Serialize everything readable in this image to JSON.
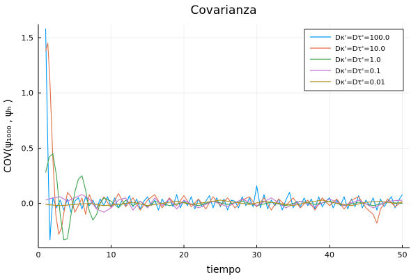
{
  "chart_data": {
    "type": "line",
    "title": "Covarianza",
    "xlabel": "tiempo",
    "ylabel": "COV(ψ₁₀₀₀ , ψₕ )",
    "xlim": [
      0,
      51
    ],
    "ylim": [
      -0.4,
      1.62
    ],
    "xticks": [
      0,
      10,
      20,
      30,
      40,
      50
    ],
    "yticks": [
      0.0,
      0.5,
      1.0,
      1.5
    ],
    "ytick_labels": [
      "0.0",
      "0.5",
      "1.0",
      "1.5"
    ],
    "grid": true,
    "legend_position": "top-right",
    "series": [
      {
        "name": "Dκ'=Dτ'=100.0",
        "color": "#009AFA",
        "x": [
          1.0,
          1.2,
          1.4,
          1.6,
          1.8,
          2.0,
          2.5,
          3.0,
          3.5,
          4.0,
          4.5,
          5.0,
          5.5,
          6.0,
          6.5,
          7.0,
          7.5,
          8.0,
          8.5,
          9.0,
          9.5,
          10.0,
          10.5,
          11.0,
          11.5,
          12.0,
          12.5,
          13.0,
          13.5,
          14.0,
          14.5,
          15.0,
          15.5,
          16.0,
          16.5,
          17.0,
          17.5,
          18.0,
          18.5,
          19.0,
          19.5,
          20.0,
          20.5,
          21.0,
          21.5,
          22.0,
          22.5,
          23.0,
          23.5,
          24.0,
          24.5,
          25.0,
          25.5,
          26.0,
          26.5,
          27.0,
          27.5,
          28.0,
          28.5,
          29.0,
          29.5,
          30.0,
          30.5,
          31.0,
          31.5,
          32.0,
          32.5,
          33.0,
          33.5,
          34.0,
          34.5,
          35.0,
          35.5,
          36.0,
          36.5,
          37.0,
          37.5,
          38.0,
          38.5,
          39.0,
          39.5,
          40.0,
          40.5,
          41.0,
          41.5,
          42.0,
          42.5,
          43.0,
          43.5,
          44.0,
          44.5,
          45.0,
          45.5,
          46.0,
          46.5,
          47.0,
          47.5,
          48.0,
          48.5,
          49.0,
          49.5,
          50.0
        ],
        "y": [
          1.58,
          0.9,
          0.2,
          -0.33,
          -0.12,
          0.05,
          -0.04,
          0.03,
          -0.06,
          0.04,
          -0.08,
          0.02,
          0.05,
          -0.05,
          0.06,
          -0.02,
          0.03,
          -0.05,
          0.04,
          -0.02,
          0.06,
          -0.03,
          0.05,
          -0.04,
          0.03,
          -0.02,
          0.07,
          -0.03,
          0.04,
          -0.05,
          0.02,
          0.06,
          -0.02,
          0.03,
          -0.06,
          0.04,
          -0.02,
          0.05,
          -0.03,
          0.08,
          -0.04,
          0.03,
          -0.02,
          0.06,
          -0.05,
          0.04,
          -0.03,
          0.02,
          0.07,
          -0.04,
          0.05,
          -0.03,
          0.04,
          -0.06,
          0.03,
          0.02,
          -0.04,
          0.06,
          -0.02,
          0.05,
          -0.03,
          0.16,
          -0.04,
          0.08,
          -0.05,
          0.03,
          -0.02,
          0.04,
          -0.06,
          0.03,
          0.1,
          -0.04,
          0.02,
          -0.03,
          0.05,
          -0.02,
          0.04,
          -0.05,
          0.06,
          -0.03,
          0.02,
          0.05,
          -0.04,
          0.03,
          -0.02,
          0.06,
          -0.05,
          0.04,
          -0.03,
          0.07,
          -0.04,
          0.03,
          -0.02,
          0.05,
          -0.06,
          0.04,
          -0.03,
          0.02,
          0.06,
          -0.04,
          0.03,
          0.08
        ]
      },
      {
        "name": "Dκ'=Dτ'=10.0",
        "color": "#E26F46",
        "x": [
          1.0,
          1.3,
          1.6,
          2.0,
          2.4,
          2.8,
          3.2,
          3.6,
          4.0,
          4.5,
          5.0,
          5.5,
          6.0,
          6.5,
          7.0,
          7.5,
          8.0,
          9.0,
          10.0,
          11.0,
          12.0,
          13.0,
          14.0,
          15.0,
          16.0,
          17.0,
          18.0,
          19.0,
          20.0,
          21.0,
          22.0,
          23.0,
          24.0,
          25.0,
          26.0,
          27.0,
          28.0,
          29.0,
          30.0,
          31.0,
          32.0,
          33.0,
          34.0,
          35.0,
          36.0,
          37.0,
          38.0,
          39.0,
          40.0,
          41.0,
          42.0,
          43.0,
          44.0,
          45.0,
          46.0,
          46.5,
          47.0,
          48.0,
          49.0,
          50.0
        ],
        "y": [
          1.38,
          1.45,
          1.1,
          0.4,
          -0.1,
          -0.28,
          -0.22,
          -0.05,
          0.1,
          0.06,
          -0.08,
          -0.02,
          0.05,
          -0.1,
          0.08,
          0.0,
          -0.05,
          0.06,
          -0.04,
          0.09,
          -0.03,
          0.05,
          -0.06,
          0.03,
          0.08,
          -0.04,
          0.05,
          -0.02,
          0.07,
          -0.03,
          0.04,
          -0.05,
          0.06,
          -0.02,
          0.05,
          -0.04,
          0.03,
          0.06,
          -0.03,
          0.05,
          -0.06,
          0.04,
          -0.02,
          0.05,
          -0.04,
          0.03,
          -0.06,
          0.05,
          -0.02,
          0.04,
          -0.05,
          0.03,
          0.06,
          -0.04,
          -0.1,
          -0.18,
          -0.05,
          0.04,
          -0.03,
          0.02
        ]
      },
      {
        "name": "Dκ'=Dτ'=1.0",
        "color": "#3DA44D",
        "x": [
          1.0,
          1.5,
          2.0,
          2.5,
          3.0,
          3.5,
          4.0,
          4.5,
          5.0,
          5.5,
          6.0,
          6.5,
          7.0,
          7.5,
          8.0,
          8.5,
          9.0,
          10.0,
          11.0,
          12.0,
          13.0,
          14.0,
          15.0,
          16.0,
          18.0,
          20.0,
          22.0,
          24.0,
          26.0,
          28.0,
          30.0,
          32.0,
          34.0,
          36.0,
          38.0,
          40.0,
          42.0,
          44.0,
          46.0,
          48.0,
          50.0
        ],
        "y": [
          0.28,
          0.42,
          0.45,
          0.25,
          -0.1,
          -0.33,
          -0.32,
          -0.1,
          0.1,
          0.22,
          0.25,
          0.12,
          -0.07,
          -0.15,
          -0.1,
          0.0,
          0.05,
          0.02,
          -0.04,
          0.03,
          -0.02,
          0.02,
          -0.03,
          0.02,
          -0.02,
          0.01,
          -0.02,
          0.02,
          -0.01,
          0.02,
          -0.02,
          0.01,
          -0.02,
          0.02,
          -0.01,
          0.02,
          -0.02,
          0.01,
          -0.02,
          0.01,
          0.0
        ]
      },
      {
        "name": "Dκ'=Dτ'=0.1",
        "color": "#C271D2",
        "x": [
          1.0,
          2.0,
          3.0,
          4.0,
          5.0,
          6.0,
          7.0,
          8.0,
          9.0,
          10.0,
          11.0,
          12.0,
          13.0,
          14.0,
          15.0,
          16.0,
          17.0,
          18.0,
          19.0,
          20.0,
          22.0,
          24.0,
          26.0,
          28.0,
          30.0,
          32.0,
          34.0,
          36.0,
          38.0,
          40.0,
          42.0,
          44.0,
          46.0,
          48.0,
          50.0
        ],
        "y": [
          0.03,
          0.05,
          0.06,
          0.02,
          0.05,
          0.08,
          0.04,
          -0.05,
          -0.08,
          -0.04,
          0.03,
          0.05,
          -0.06,
          0.02,
          -0.04,
          0.05,
          -0.02,
          0.04,
          -0.05,
          0.03,
          -0.04,
          0.02,
          -0.03,
          0.04,
          -0.02,
          0.05,
          -0.04,
          0.02,
          -0.03,
          0.04,
          -0.02,
          0.03,
          -0.04,
          0.02,
          0.03
        ]
      },
      {
        "name": "Dκ'=Dτ'=0.01",
        "color": "#AC8D18",
        "x": [
          1.0,
          3.0,
          5.0,
          7.0,
          9.0,
          11.0,
          13.0,
          15.0,
          17.0,
          19.0,
          21.0,
          23.0,
          25.0,
          27.0,
          29.0,
          31.0,
          33.0,
          35.0,
          37.0,
          39.0,
          41.0,
          43.0,
          45.0,
          47.0,
          49.0,
          50.0
        ],
        "y": [
          -0.01,
          -0.02,
          -0.01,
          0.0,
          -0.02,
          -0.01,
          0.01,
          -0.02,
          0.0,
          0.02,
          -0.01,
          0.01,
          0.03,
          0.01,
          -0.01,
          0.02,
          0.0,
          -0.02,
          0.01,
          0.03,
          0.0,
          -0.02,
          0.01,
          0.02,
          0.0,
          0.01
        ]
      }
    ]
  }
}
